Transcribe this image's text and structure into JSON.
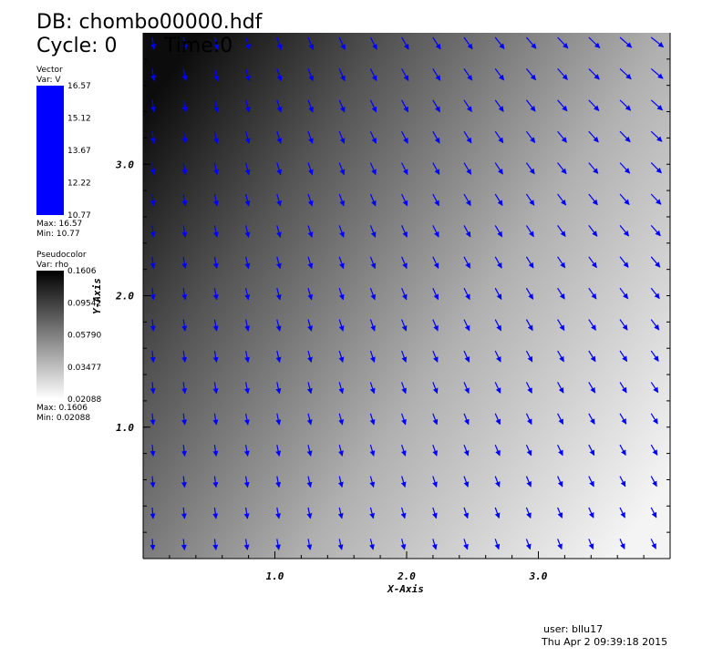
{
  "header": {
    "database": "DB: chombo00000.hdf",
    "cycle": "Cycle: 0",
    "time": "Time:0"
  },
  "vector_legend": {
    "title": "Vector",
    "var": "Var: V",
    "color": "#0000ff",
    "labels": [
      "16.57",
      "15.12",
      "13.67",
      "12.22",
      "10.77"
    ],
    "max": "Max:  16.57",
    "min": "Min:  10.77"
  },
  "pseudocolor_legend": {
    "title": "Pseudocolor",
    "var": "Var: rho",
    "labels": [
      "0.1606",
      "0.09542",
      "0.05790",
      "0.03477",
      "0.02088"
    ],
    "max": "Max:  0.1606",
    "min": "Min:  0.02088"
  },
  "axes": {
    "x_label": "X-Axis",
    "y_label": "Y-Axis",
    "xlim": [
      0,
      4
    ],
    "ylim": [
      0,
      4
    ],
    "xticks": [
      {
        "value": 1,
        "label": "1.0"
      },
      {
        "value": 2,
        "label": "2.0"
      },
      {
        "value": 3,
        "label": "3.0"
      }
    ],
    "yticks": [
      {
        "value": 1,
        "label": "1.0"
      },
      {
        "value": 2,
        "label": "2.0"
      },
      {
        "value": 3,
        "label": "3.0"
      }
    ]
  },
  "footer": {
    "user": "user: bllu17",
    "date": "Thu Apr  2 09:39:18 2015"
  }
}
